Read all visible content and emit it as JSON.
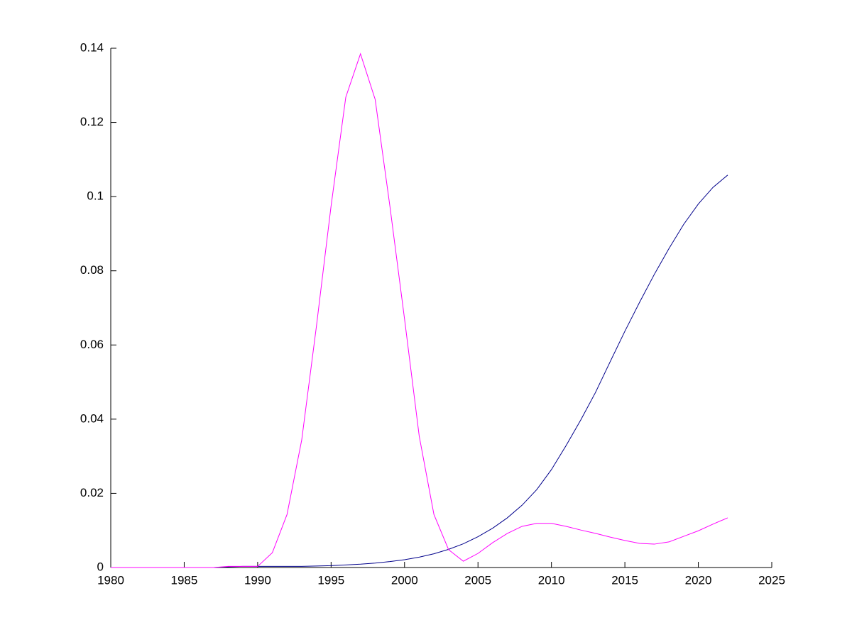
{
  "chart_data": {
    "type": "line",
    "x": [
      1980,
      1981,
      1982,
      1983,
      1984,
      1985,
      1986,
      1987,
      1988,
      1989,
      1990,
      1991,
      1992,
      1993,
      1994,
      1995,
      1996,
      1997,
      1998,
      1999,
      2000,
      2001,
      2002,
      2003,
      2004,
      2005,
      2006,
      2007,
      2008,
      2009,
      2010,
      2011,
      2012,
      2013,
      2014,
      2015,
      2016,
      2017,
      2018,
      2019,
      2020,
      2021,
      2022
    ],
    "series": [
      {
        "color": "#00008b",
        "values": [
          0,
          0,
          0,
          0,
          0,
          0,
          0,
          0,
          0.0002,
          0.0003,
          0.0003,
          0.0003,
          0.0003,
          0.0003,
          0.0004,
          0.0005,
          0.0007,
          0.0009,
          0.0012,
          0.0016,
          0.0021,
          0.0028,
          0.0037,
          0.0049,
          0.0064,
          0.0083,
          0.0106,
          0.0134,
          0.0168,
          0.021,
          0.0264,
          0.0329,
          0.0398,
          0.0472,
          0.0555,
          0.0637,
          0.0715,
          0.079,
          0.086,
          0.0925,
          0.098,
          0.1025,
          0.1058
        ]
      },
      {
        "color": "#ff00ff",
        "values": [
          0,
          0,
          0,
          0,
          0,
          0,
          0,
          0,
          0.0003,
          0.0003,
          0.0003,
          0.004,
          0.0143,
          0.0344,
          0.065,
          0.0975,
          0.1268,
          0.1385,
          0.1262,
          0.0975,
          0.067,
          0.0354,
          0.0143,
          0.0048,
          0.0017,
          0.0038,
          0.0067,
          0.0092,
          0.0111,
          0.0119,
          0.0119,
          0.0111,
          0.0101,
          0.0092,
          0.0082,
          0.0073,
          0.0065,
          0.0063,
          0.0069,
          0.0084,
          0.0099,
          0.0117,
          0.0134
        ]
      }
    ],
    "xlim": [
      1980,
      2025
    ],
    "xticks": [
      1980,
      1985,
      1990,
      1995,
      2000,
      2005,
      2010,
      2015,
      2020,
      2025
    ],
    "ylim": [
      0,
      0.14
    ],
    "yticks": [
      0,
      0.02,
      0.04,
      0.06,
      0.08,
      0.1,
      0.12,
      0.14
    ]
  }
}
